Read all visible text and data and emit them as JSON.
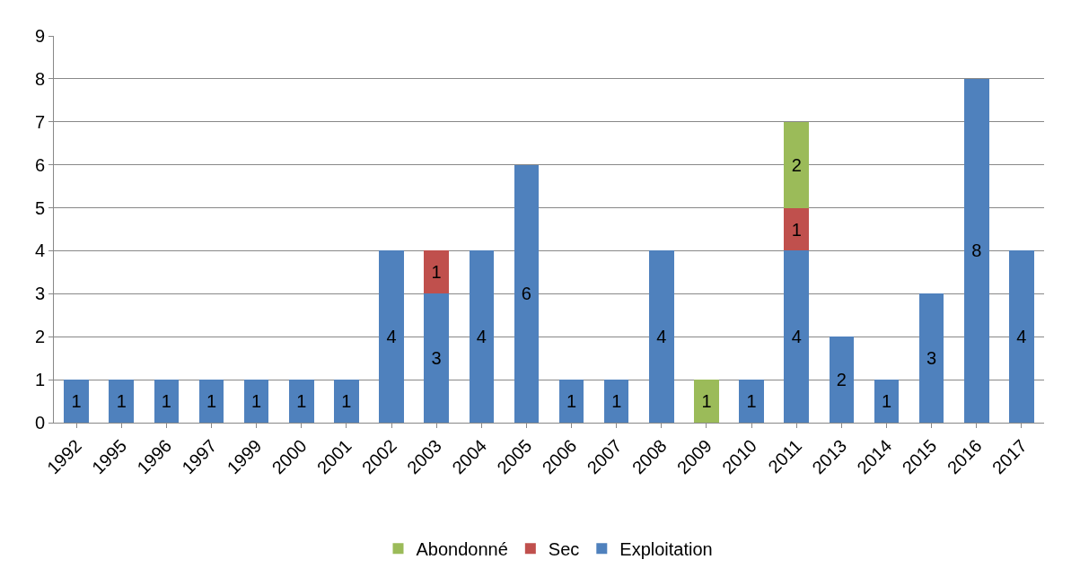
{
  "chart_data": {
    "type": "bar",
    "stacked": true,
    "categories": [
      "1992",
      "1995",
      "1996",
      "1997",
      "1999",
      "2000",
      "2001",
      "2002",
      "2003",
      "2004",
      "2005",
      "2006",
      "2007",
      "2008",
      "2009",
      "2010",
      "2011",
      "2013",
      "2014",
      "2015",
      "2016",
      "2017"
    ],
    "series": [
      {
        "name": "Exploitation",
        "color": "#4f81bd",
        "values": [
          1,
          1,
          1,
          1,
          1,
          1,
          1,
          4,
          3,
          4,
          6,
          1,
          1,
          4,
          null,
          1,
          4,
          2,
          1,
          3,
          8,
          4
        ]
      },
      {
        "name": "Sec",
        "color": "#c0504d",
        "values": [
          null,
          null,
          null,
          null,
          null,
          null,
          null,
          null,
          1,
          null,
          null,
          null,
          null,
          null,
          null,
          null,
          1,
          null,
          null,
          null,
          null,
          null
        ]
      },
      {
        "name": "Abondonné",
        "color": "#9bbb59",
        "values": [
          null,
          null,
          null,
          null,
          null,
          null,
          null,
          null,
          null,
          null,
          null,
          null,
          null,
          null,
          1,
          null,
          2,
          null,
          null,
          null,
          null,
          null
        ]
      }
    ],
    "ylim": [
      0,
      9
    ],
    "yticks": [
      0,
      1,
      2,
      3,
      4,
      5,
      6,
      7,
      8,
      9
    ],
    "grid": "y",
    "legend": "bottom",
    "data_labels": true
  }
}
